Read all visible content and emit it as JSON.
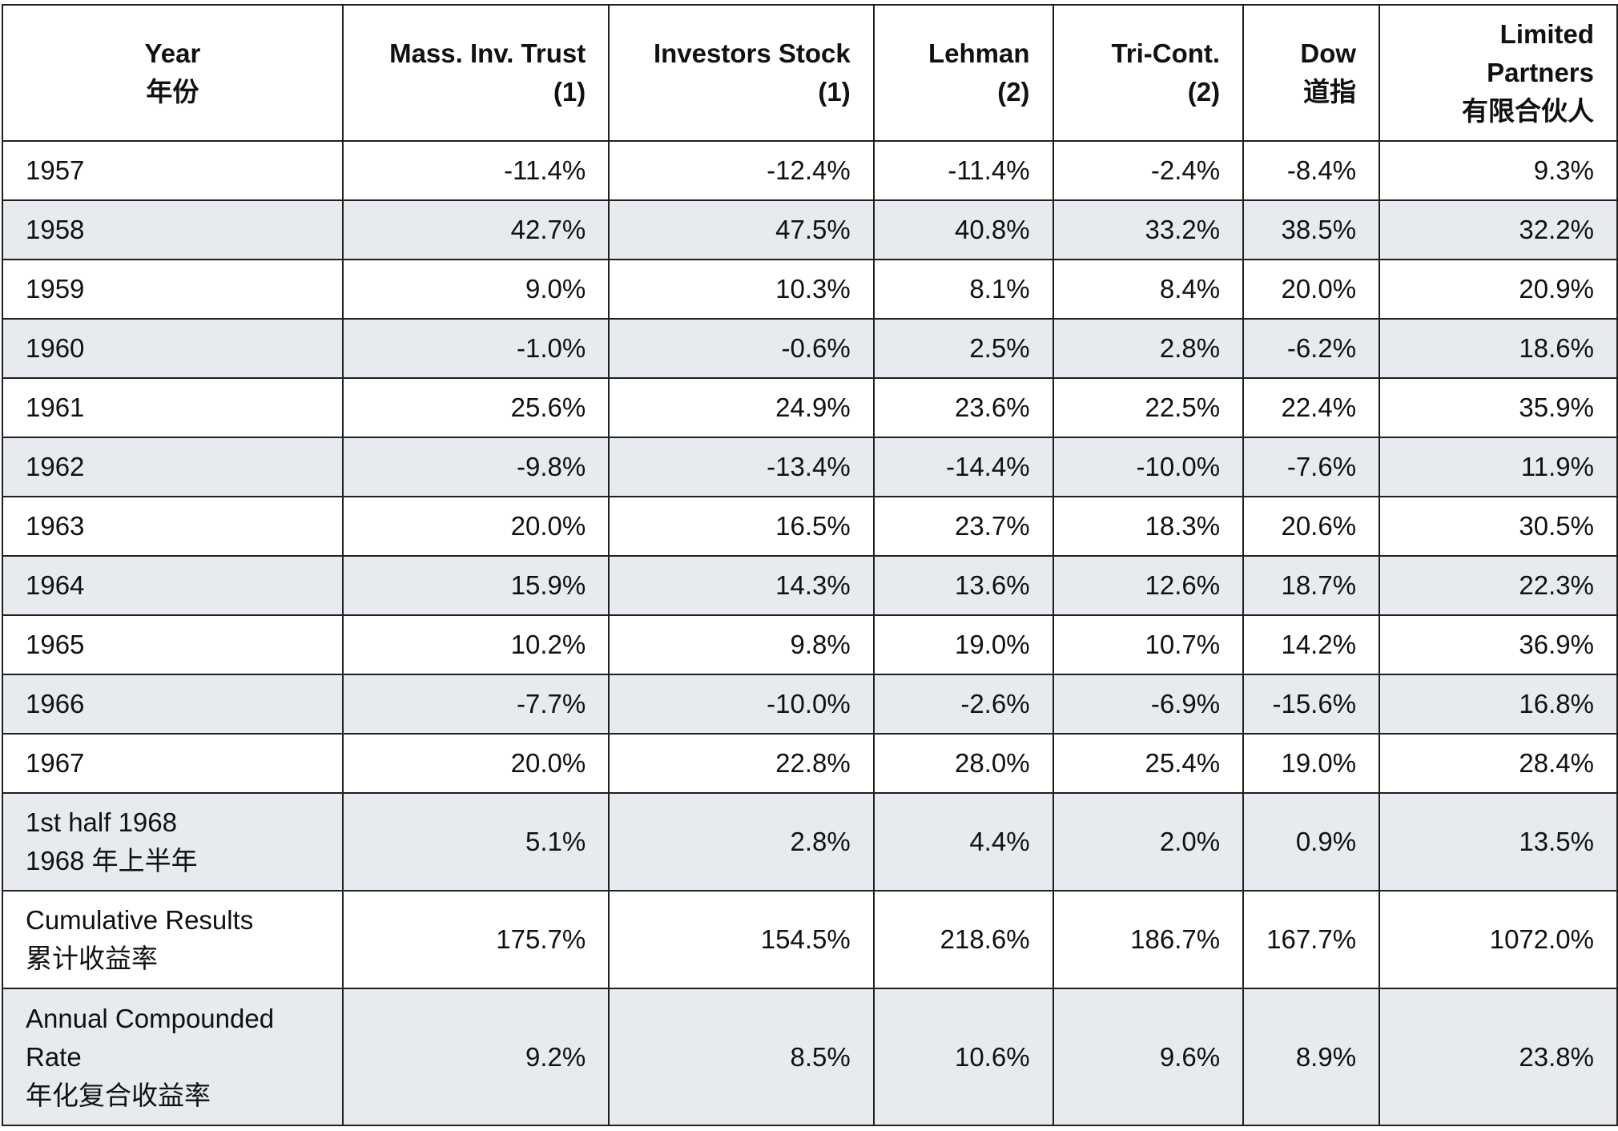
{
  "table": {
    "columns": [
      {
        "lines": [
          "Year",
          "年份"
        ]
      },
      {
        "lines": [
          "Mass. Inv. Trust",
          "(1)"
        ]
      },
      {
        "lines": [
          "Investors Stock",
          "(1)"
        ]
      },
      {
        "lines": [
          "Lehman",
          "(2)"
        ]
      },
      {
        "lines": [
          "Tri-Cont.",
          "(2)"
        ]
      },
      {
        "lines": [
          "Dow",
          "道指"
        ]
      },
      {
        "lines": [
          "Limited",
          "Partners",
          "有限合伙人"
        ]
      }
    ],
    "rows": [
      {
        "label": [
          "1957"
        ],
        "values": [
          "-11.4%",
          "-12.4%",
          "-11.4%",
          "-2.4%",
          "-8.4%",
          "9.3%"
        ]
      },
      {
        "label": [
          "1958"
        ],
        "values": [
          "42.7%",
          "47.5%",
          "40.8%",
          "33.2%",
          "38.5%",
          "32.2%"
        ]
      },
      {
        "label": [
          "1959"
        ],
        "values": [
          "9.0%",
          "10.3%",
          "8.1%",
          "8.4%",
          "20.0%",
          "20.9%"
        ]
      },
      {
        "label": [
          "1960"
        ],
        "values": [
          "-1.0%",
          "-0.6%",
          "2.5%",
          "2.8%",
          "-6.2%",
          "18.6%"
        ]
      },
      {
        "label": [
          "1961"
        ],
        "values": [
          "25.6%",
          "24.9%",
          "23.6%",
          "22.5%",
          "22.4%",
          "35.9%"
        ]
      },
      {
        "label": [
          "1962"
        ],
        "values": [
          "-9.8%",
          "-13.4%",
          "-14.4%",
          "-10.0%",
          "-7.6%",
          "11.9%"
        ]
      },
      {
        "label": [
          "1963"
        ],
        "values": [
          "20.0%",
          "16.5%",
          "23.7%",
          "18.3%",
          "20.6%",
          "30.5%"
        ]
      },
      {
        "label": [
          "1964"
        ],
        "values": [
          "15.9%",
          "14.3%",
          "13.6%",
          "12.6%",
          "18.7%",
          "22.3%"
        ]
      },
      {
        "label": [
          "1965"
        ],
        "values": [
          "10.2%",
          "9.8%",
          "19.0%",
          "10.7%",
          "14.2%",
          "36.9%"
        ]
      },
      {
        "label": [
          "1966"
        ],
        "values": [
          "-7.7%",
          "-10.0%",
          "-2.6%",
          "-6.9%",
          "-15.6%",
          "16.8%"
        ]
      },
      {
        "label": [
          "1967"
        ],
        "values": [
          "20.0%",
          "22.8%",
          "28.0%",
          "25.4%",
          "19.0%",
          "28.4%"
        ]
      },
      {
        "label": [
          "1st half 1968",
          "1968 年上半年"
        ],
        "values": [
          "5.1%",
          "2.8%",
          "4.4%",
          "2.0%",
          "0.9%",
          "13.5%"
        ]
      },
      {
        "label": [
          "Cumulative Results",
          "累计收益率"
        ],
        "values": [
          "175.7%",
          "154.5%",
          "218.6%",
          "186.7%",
          "167.7%",
          "1072.0%"
        ]
      },
      {
        "label": [
          "Annual Compounded",
          "Rate",
          "年化复合收益率"
        ],
        "values": [
          "9.2%",
          "8.5%",
          "10.6%",
          "9.6%",
          "8.9%",
          "23.8%"
        ]
      }
    ]
  },
  "colors": {
    "stripe": "#e7eaee",
    "border": "#1f1f1f",
    "text": "#111111"
  }
}
